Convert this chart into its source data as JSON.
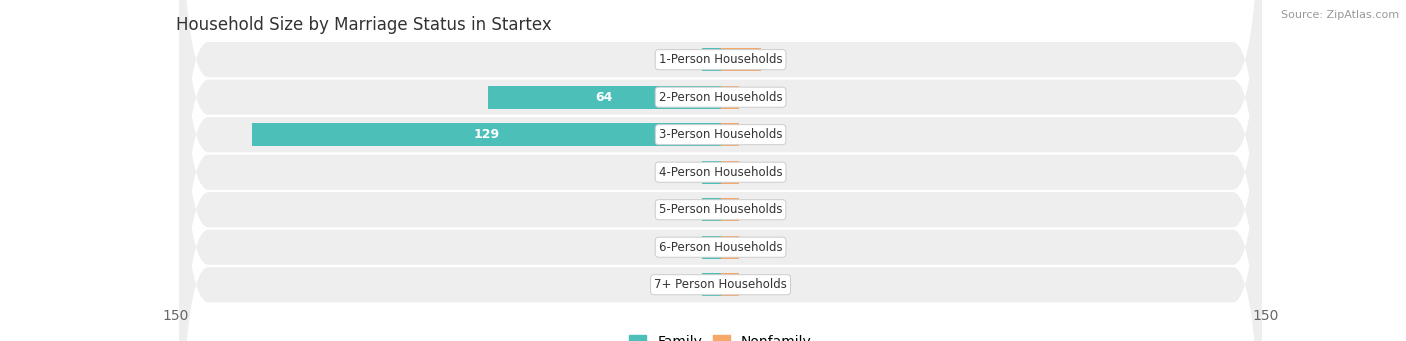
{
  "title": "Household Size by Marriage Status in Startex",
  "source": "Source: ZipAtlas.com",
  "categories": [
    "7+ Person Households",
    "6-Person Households",
    "5-Person Households",
    "4-Person Households",
    "3-Person Households",
    "2-Person Households",
    "1-Person Households"
  ],
  "family_values": [
    0,
    0,
    0,
    0,
    129,
    64,
    0
  ],
  "nonfamily_values": [
    0,
    0,
    0,
    0,
    0,
    0,
    11
  ],
  "family_color": "#4BBFB8",
  "nonfamily_color": "#F5A86A",
  "xlim": 150,
  "row_bg_color": "#eeeeee",
  "label_bg_color": "#ffffff",
  "title_fontsize": 12,
  "axis_fontsize": 10,
  "legend_fontsize": 10,
  "bar_height": 0.62,
  "fig_width": 14.06,
  "fig_height": 3.41
}
